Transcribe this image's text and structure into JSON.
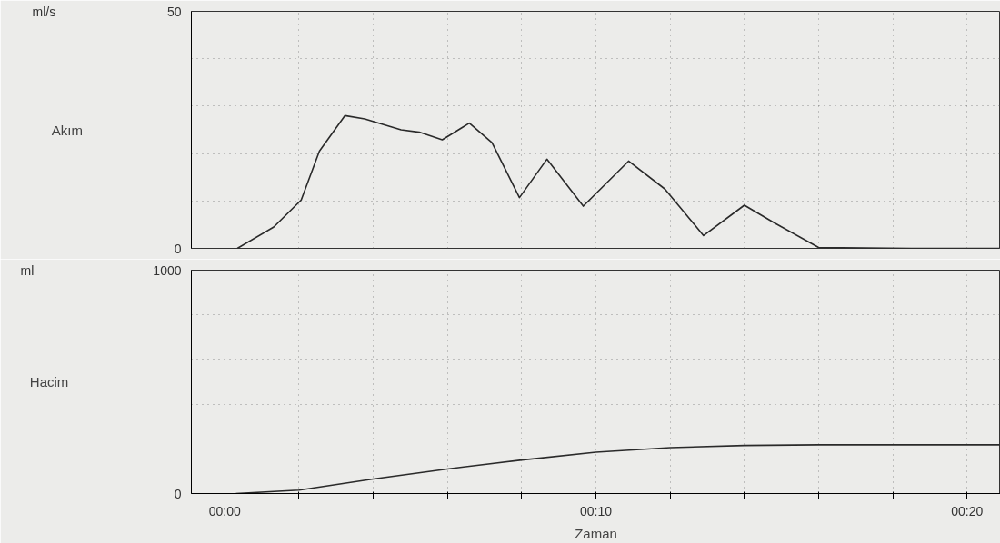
{
  "chart_data": [
    {
      "type": "line",
      "ylabel": "Akım",
      "annotations": [
        "ml/s"
      ],
      "xlim": [
        -0.9,
        20.9
      ],
      "ylim": [
        0,
        50
      ],
      "xticks": [
        {
          "value": 0,
          "label": null
        },
        {
          "value": 2,
          "label": null
        },
        {
          "value": 4,
          "label": null
        },
        {
          "value": 6,
          "label": null
        },
        {
          "value": 8,
          "label": null
        },
        {
          "value": 10,
          "label": null
        },
        {
          "value": 12,
          "label": null
        },
        {
          "value": 14,
          "label": null
        },
        {
          "value": 16,
          "label": null
        },
        {
          "value": 18,
          "label": null
        },
        {
          "value": 20,
          "label": null
        }
      ],
      "yticks": [
        0,
        {
          "value": 10,
          "label": null
        },
        {
          "value": 20,
          "label": null
        },
        {
          "value": 30,
          "label": null
        },
        {
          "value": 40,
          "label": null
        },
        50
      ],
      "tick_labels": "y",
      "grid": true,
      "line_style": "solid",
      "x": [
        0.34,
        1.32,
        2.06,
        2.55,
        3.24,
        3.77,
        4.75,
        5.24,
        5.86,
        6.59,
        7.2,
        7.94,
        8.68,
        9.66,
        10.88,
        11.86,
        12.9,
        14.0,
        14.8,
        16.0,
        18.5,
        20.9
      ],
      "series": [
        {
          "color": "#2a2a2a",
          "values": [
            0,
            4.5,
            10.2,
            20.5,
            28,
            27.3,
            25,
            24.5,
            22.9,
            26.4,
            22.3,
            10.7,
            18.8,
            8.9,
            18.4,
            12.5,
            2.7,
            9.1,
            5.4,
            0.2,
            0,
            0
          ]
        }
      ]
    },
    {
      "type": "line",
      "ylabel": "Hacim",
      "xlabel": "Zaman",
      "annotations": [
        "ml"
      ],
      "xlim": [
        -0.9,
        20.9
      ],
      "ylim": [
        0,
        1000
      ],
      "xticks": [
        {
          "value": 0,
          "label": "00:00"
        },
        {
          "value": 2,
          "label": null
        },
        {
          "value": 4,
          "label": null
        },
        {
          "value": 6,
          "label": null
        },
        {
          "value": 8,
          "label": null
        },
        {
          "value": 10,
          "label": "00:10"
        },
        {
          "value": 12,
          "label": null
        },
        {
          "value": 14,
          "label": null
        },
        {
          "value": 16,
          "label": null
        },
        {
          "value": 18,
          "label": null
        },
        {
          "value": 20,
          "label": "00:20"
        }
      ],
      "yticks": [
        0,
        {
          "value": 200,
          "label": null
        },
        {
          "value": 400,
          "label": null
        },
        {
          "value": 600,
          "label": null
        },
        {
          "value": 800,
          "label": null
        },
        1000
      ],
      "grid": true,
      "line_style": "solid",
      "x": [
        0.3,
        2,
        4,
        6,
        8,
        10,
        12,
        14,
        16,
        20.9
      ],
      "series": [
        {
          "color": "#2a2a2a",
          "values": [
            0,
            15,
            65,
            110,
            150,
            185,
            205,
            215,
            218,
            218
          ]
        }
      ]
    }
  ]
}
